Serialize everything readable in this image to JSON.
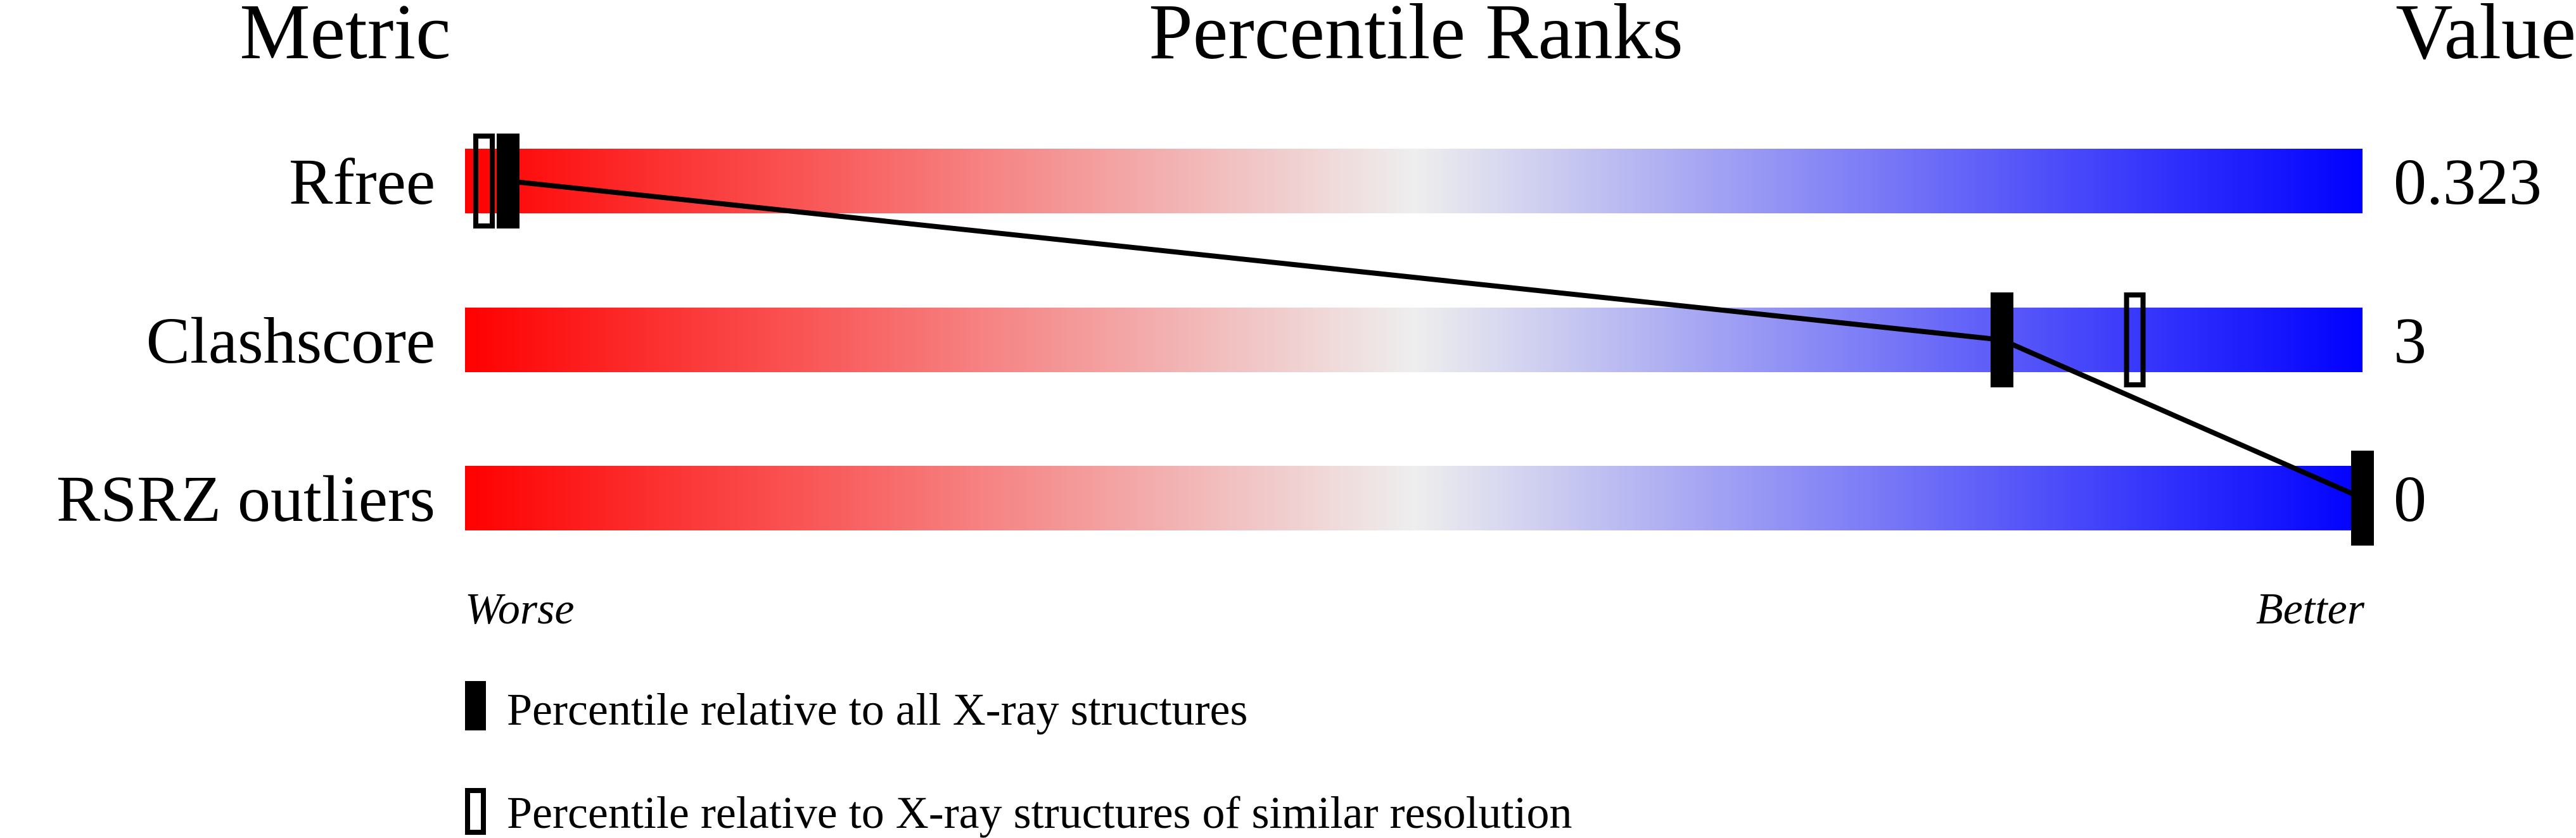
{
  "chart_data": {
    "type": "bar",
    "headers": {
      "metric": "Metric",
      "ranks": "Percentile Ranks",
      "value": "Value"
    },
    "xlim": [
      0,
      100
    ],
    "scale_labels": {
      "low": "Worse",
      "high": "Better"
    },
    "colors": {
      "worse": "#ff0000",
      "middle": "#eeeeee",
      "better": "#0000ff"
    },
    "rows": [
      {
        "metric": "Rfree",
        "value": "0.323",
        "percentile_all": 2,
        "percentile_similar": 1
      },
      {
        "metric": "Clashscore",
        "value": "3",
        "percentile_all": 81,
        "percentile_similar": 88
      },
      {
        "metric": "RSRZ outliers",
        "value": "0",
        "percentile_all": 100,
        "percentile_similar": null
      }
    ],
    "legend": {
      "all": "Percentile relative to all X-ray structures",
      "similar": "Percentile relative to X-ray structures of similar resolution"
    }
  }
}
